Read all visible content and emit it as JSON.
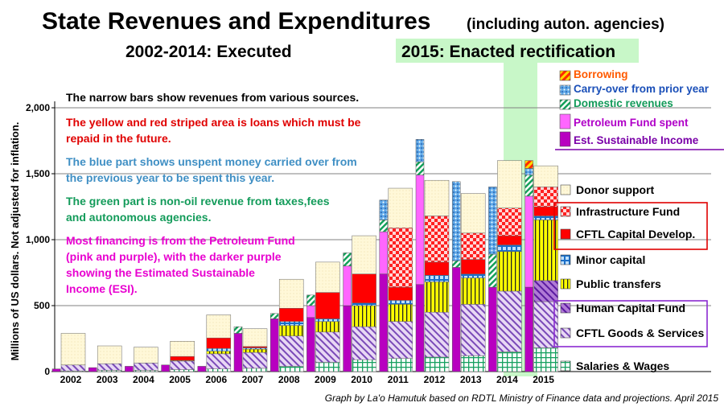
{
  "chart_data": {
    "type": "bar",
    "title": "State Revenues and Expenditures",
    "title_note": "(including auton. agencies)",
    "subtitle_executed": "2002-2014: Executed",
    "subtitle_enacted": "2015: Enacted rectification",
    "ylabel": "Millions of US dollars.  Not adjusted for inflation.",
    "ylim": [
      0,
      2000
    ],
    "yticks": [
      0,
      500,
      "1,000",
      "1,500",
      "2,000"
    ],
    "ytick_values": [
      0,
      500,
      1000,
      1500,
      2000
    ],
    "categories": [
      "2002",
      "2003",
      "2004",
      "2005",
      "2006",
      "2007",
      "2008",
      "2009",
      "2010",
      "2011",
      "2012",
      "2013",
      "2014",
      "2015"
    ],
    "credit": "Graph by La'o Hamutuk based on RDTL Ministry of Finance data and projections.  April 2015",
    "annotations": [
      {
        "text": "The narrow bars show revenues from various sources.",
        "color": "#000000"
      },
      {
        "text": "The yellow and red striped area is loans which must be",
        "color": "#e00000"
      },
      {
        "text": "repaid in the future.",
        "color": "#e00000"
      },
      {
        "text": "The blue part shows unspent money carried over from",
        "color": "#3f8fc4"
      },
      {
        "text": "the previous year to be spent this year.",
        "color": "#3f8fc4"
      },
      {
        "text": "The green part is non-oil revenue from taxes,fees",
        "color": "#139b5a"
      },
      {
        "text": "and autonomous agencies.",
        "color": "#139b5a"
      },
      {
        "text": "Most financing is from the Petroleum Fund",
        "color": "#e800d0"
      },
      {
        "text": "(pink and purple), with the darker purple",
        "color": "#e800d0"
      },
      {
        "text": "showing the Estimated Sustainable",
        "color": "#e800d0"
      },
      {
        "text": "Income (ESI).",
        "color": "#e800d0"
      }
    ],
    "revenue_legend": [
      {
        "name": "Borrowing",
        "color": "#ff5a00"
      },
      {
        "name": "Carry-over from prior year",
        "color": "#1a4fb8"
      },
      {
        "name": "Domestic revenues",
        "color": "#139b5a"
      },
      {
        "name": "Petroleum Fund spent",
        "color": "#b000c8"
      },
      {
        "name": "Est. Sustainable Income",
        "color": "#7a00a8"
      }
    ],
    "expenditure_legend": [
      {
        "name": "Donor support"
      },
      {
        "name": "Infrastructure Fund"
      },
      {
        "name": "CFTL Capital Develop."
      },
      {
        "name": "Minor capital"
      },
      {
        "name": "Public transfers"
      },
      {
        "name": "Human Capital Fund"
      },
      {
        "name": "CFTL Goods & Services"
      },
      {
        "name": "Salaries & Wages"
      }
    ],
    "revenue_series": [
      "Est. Sustainable Income",
      "Petroleum Fund spent",
      "Domestic revenues",
      "Carry-over from prior year",
      "Borrowing"
    ],
    "revenue_values": [
      [
        20,
        0,
        0,
        0,
        0
      ],
      [
        30,
        0,
        0,
        0,
        0
      ],
      [
        40,
        0,
        0,
        0,
        0
      ],
      [
        50,
        0,
        0,
        0,
        0
      ],
      [
        40,
        0,
        0,
        0,
        0
      ],
      [
        290,
        0,
        50,
        0,
        0
      ],
      [
        400,
        0,
        40,
        0,
        0
      ],
      [
        410,
        90,
        80,
        0,
        0
      ],
      [
        500,
        300,
        100,
        0,
        0
      ],
      [
        740,
        320,
        90,
        150,
        0
      ],
      [
        660,
        830,
        100,
        170,
        0
      ],
      [
        790,
        0,
        50,
        600,
        0
      ],
      [
        640,
        0,
        250,
        510,
        0
      ],
      [
        640,
        690,
        160,
        50,
        60
      ]
    ],
    "expenditure_series": [
      "Salaries & Wages",
      "CFTL Goods & Services",
      "Human Capital Fund",
      "Public transfers",
      "Minor capital",
      "CFTL Capital Develop.",
      "Infrastructure Fund",
      "Donor support"
    ],
    "expenditure_values": [
      [
        5,
        45,
        0,
        0,
        0,
        0,
        0,
        240
      ],
      [
        10,
        50,
        0,
        0,
        0,
        0,
        0,
        135
      ],
      [
        10,
        55,
        0,
        0,
        0,
        0,
        0,
        120
      ],
      [
        15,
        65,
        0,
        5,
        0,
        30,
        0,
        115
      ],
      [
        20,
        115,
        0,
        20,
        20,
        80,
        0,
        175
      ],
      [
        25,
        120,
        0,
        25,
        10,
        10,
        0,
        135
      ],
      [
        40,
        230,
        0,
        80,
        30,
        100,
        0,
        220
      ],
      [
        70,
        230,
        0,
        80,
        20,
        200,
        0,
        230
      ],
      [
        90,
        250,
        0,
        160,
        20,
        220,
        0,
        290
      ],
      [
        100,
        280,
        0,
        130,
        30,
        100,
        450,
        300
      ],
      [
        110,
        340,
        0,
        230,
        50,
        100,
        350,
        270
      ],
      [
        120,
        390,
        0,
        200,
        30,
        110,
        200,
        300
      ],
      [
        150,
        460,
        0,
        300,
        50,
        70,
        210,
        360
      ],
      [
        180,
        350,
        160,
        460,
        30,
        70,
        150,
        160
      ]
    ]
  }
}
